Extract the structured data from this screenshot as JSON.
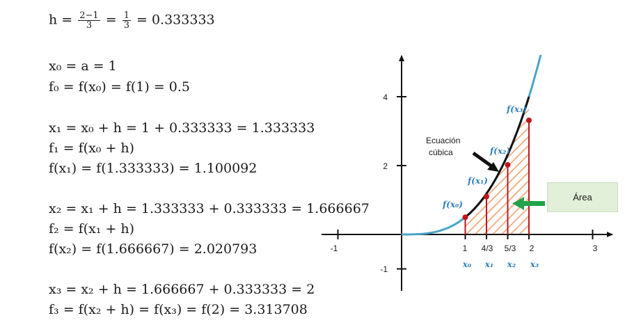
{
  "equations": {
    "h_line": {
      "lhs": "h = ",
      "frac1_num": "2−1",
      "frac1_den": "3",
      "eq1": " = ",
      "frac2_num": "1",
      "frac2_den": "3",
      "rest": " = 0.333333"
    },
    "block0": [
      "x₀ = a = 1",
      "f₀ = f(x₀) = f(1) = 0.5"
    ],
    "block1": [
      "x₁ = x₀ + h = 1 + 0.333333 = 1.333333",
      "f₁ = f(x₀ + h)",
      "f(x₁) = f(1.333333) = 1.100092"
    ],
    "block2": [
      "x₂ = x₁ + h = 1.333333 + 0.333333 = 1.666667",
      "f₂ = f(x₁ + h)",
      "f(x₂) = f(1.666667) = 2.020793"
    ],
    "block3": [
      "x₃ = x₂ + h = 1.666667 + 0.333333 = 2",
      "f₃ = f(x₂ + h) = f(x₃) = f(2) = 3.313708"
    ]
  },
  "diagram": {
    "x_ticks": [
      "-1",
      "1",
      "4/3",
      "5/3",
      "2",
      "3"
    ],
    "x_tick_values": [
      -1,
      1,
      1.333333,
      1.666667,
      2,
      3
    ],
    "y_ticks": [
      "4",
      "2",
      "-1"
    ],
    "y_tick_values": [
      4,
      2,
      -1
    ],
    "node_labels": [
      "x₀",
      "x₁",
      "x₂",
      "x₃"
    ],
    "fx_labels": [
      "f(x₀)",
      "f(x₁)",
      "f(x₂)",
      "f(x₃)"
    ],
    "node_x": [
      1,
      1.333333,
      1.666667,
      2
    ],
    "node_y": [
      0.5,
      1.100092,
      2.020793,
      3.313708
    ],
    "curve_note_line1": "Ecuación",
    "curve_note_line2": "cúbica",
    "area_label": "Área",
    "colors": {
      "curve": "#4aa3c8",
      "segment": "#111111",
      "points": "#c0141c",
      "hatch": "#f2a77a",
      "area_arrow": "#22a34a",
      "area_box": "#e2efd9"
    }
  }
}
